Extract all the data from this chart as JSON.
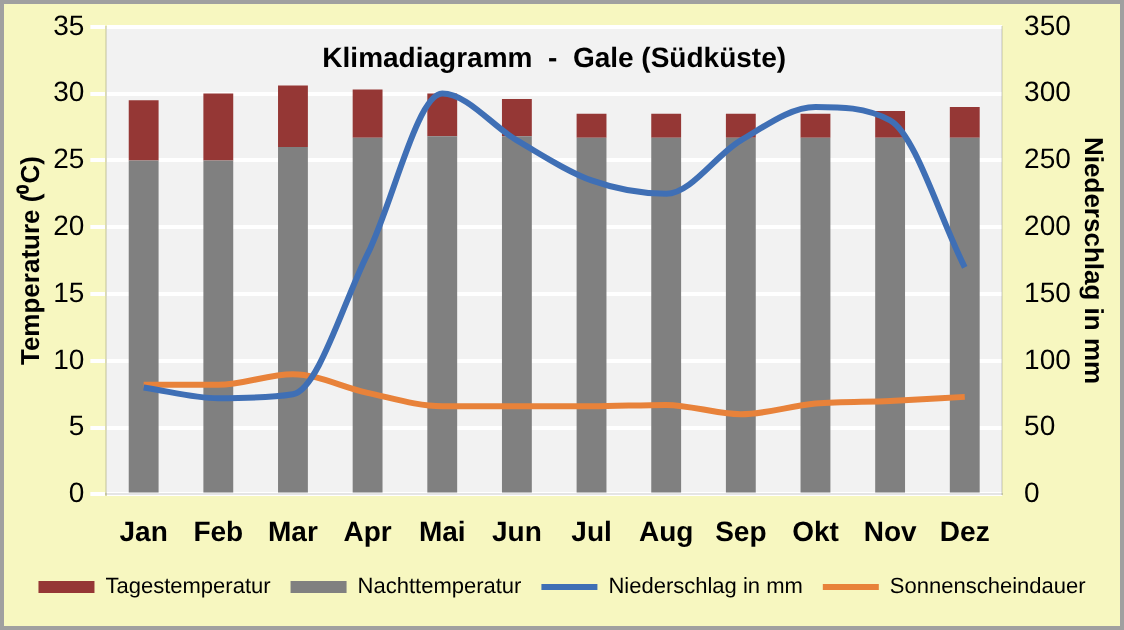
{
  "chart_data": {
    "type": "bar",
    "title": "Klimadiagramm  -  Gale (Südküste)",
    "ylabel": "Temperature (⁰C)",
    "y2label": "Niederschlag in mm",
    "categories": [
      "Jan",
      "Feb",
      "Mar",
      "Apr",
      "Mai",
      "Jun",
      "Jul",
      "Aug",
      "Sep",
      "Okt",
      "Nov",
      "Dez"
    ],
    "stacked": true,
    "series": [
      {
        "name": "Nachttemperatur",
        "color": "#808080",
        "values": [
          25,
          25,
          26,
          26.7,
          26.8,
          26.8,
          26.7,
          26.7,
          26.7,
          26.7,
          26.7,
          26.7
        ]
      },
      {
        "name": "Tagestemperatur",
        "color": "#953735",
        "values": [
          4.5,
          5,
          4.6,
          3.6,
          3.2,
          2.8,
          1.8,
          1.8,
          1.8,
          1.8,
          2,
          2.3
        ]
      },
      {
        "name": "Niederschlag in mm",
        "type": "line",
        "axis": "y2",
        "color": "#3f6fb5",
        "values": [
          80,
          72,
          75,
          180,
          300,
          265,
          235,
          225,
          265,
          290,
          280,
          170
        ]
      },
      {
        "name": "Sonnenscheindauer",
        "type": "line",
        "color": "#e8823a",
        "values": [
          8.2,
          8.2,
          9,
          7.6,
          6.6,
          6.6,
          6.6,
          6.7,
          6,
          6.8,
          7,
          7.3
        ]
      }
    ],
    "ylim": [
      0,
      35
    ],
    "yticks": [
      0,
      5,
      10,
      15,
      20,
      25,
      30,
      35
    ],
    "y2lim": [
      0,
      350
    ],
    "y2ticks": [
      0,
      50,
      100,
      150,
      200,
      250,
      300,
      350
    ],
    "grid": "y",
    "legend": "bottom",
    "marker": "none"
  }
}
